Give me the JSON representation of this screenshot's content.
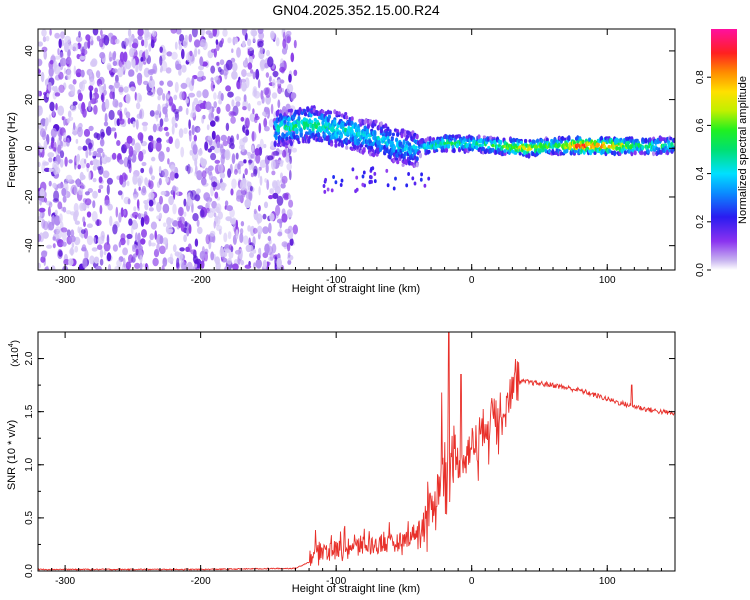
{
  "title": "GN04.2025.352.15.00.R24",
  "colors": {
    "snr_line": "#e8302a",
    "frame": "#000000",
    "scatter_base": "#a078f0"
  },
  "chart_data": [
    {
      "type": "heatmap",
      "name": "spectrogram",
      "xlabel": "Height of straight line (km)",
      "ylabel": "Frequency (Hz)",
      "xlim": [
        -320,
        150
      ],
      "ylim": [
        -50,
        49
      ],
      "x_ticks": [
        -300,
        -200,
        -100,
        0,
        100
      ],
      "x_tick_labels": [
        "-300",
        "-200",
        "-100",
        "0",
        "100"
      ],
      "y_ticks": [
        -40,
        -20,
        0,
        20,
        40
      ],
      "y_tick_labels": [
        "-40",
        "-20",
        "0",
        "20",
        "40"
      ],
      "noise_region_x": [
        -320,
        -135
      ],
      "ridge": {
        "x": [
          -145,
          -130,
          -120,
          -110,
          -100,
          -90,
          -80,
          -70,
          -60,
          -50,
          -40,
          -30,
          -20,
          -10,
          0,
          20,
          40,
          60,
          80,
          100,
          120,
          150
        ],
        "freq": [
          8,
          9,
          10,
          9,
          8,
          7,
          5,
          4,
          2,
          0,
          0,
          1,
          2,
          2,
          2,
          1,
          0,
          1,
          1,
          1,
          1,
          1
        ],
        "amp": [
          0.45,
          0.5,
          0.5,
          0.48,
          0.45,
          0.45,
          0.42,
          0.4,
          0.4,
          0.38,
          0.4,
          0.45,
          0.55,
          0.55,
          0.5,
          0.55,
          0.75,
          0.55,
          0.9,
          0.85,
          0.55,
          0.5
        ]
      },
      "colorbar": {
        "label": "Normalized spectral amplitude",
        "range": [
          0.0,
          1.0
        ],
        "ticks": [
          0.0,
          0.2,
          0.4,
          0.6,
          0.8
        ],
        "tick_labels": [
          "0.0",
          "0.2",
          "0.4",
          "0.6",
          "0.8"
        ]
      }
    },
    {
      "type": "line",
      "name": "snr",
      "xlabel": "Height of straight line (km)",
      "ylabel": "SNR (10 * v/v)",
      "y_scale_label": "(x10",
      "y_scale_exp": "4",
      "xlim": [
        -320,
        150
      ],
      "ylim": [
        0.0,
        2.25
      ],
      "x_ticks": [
        -300,
        -200,
        -100,
        0,
        100
      ],
      "x_tick_labels": [
        "-300",
        "-200",
        "-100",
        "0",
        "100"
      ],
      "y_ticks": [
        0.0,
        0.5,
        1.0,
        1.5,
        2.0
      ],
      "y_tick_labels": [
        "0.0",
        "0.5",
        "1.0",
        "1.5",
        "2.0"
      ],
      "series": [
        {
          "name": "SNR",
          "x": [
            -320,
            -200,
            -130,
            -120,
            -115,
            -100,
            -80,
            -60,
            -50,
            -40,
            -30,
            -25,
            -20,
            -15,
            -10,
            0,
            10,
            20,
            30,
            35,
            40,
            60,
            80,
            100,
            110,
            120,
            130,
            140,
            150
          ],
          "values": [
            0.01,
            0.01,
            0.02,
            0.08,
            0.15,
            0.17,
            0.2,
            0.22,
            0.25,
            0.35,
            0.6,
            0.8,
            1.0,
            1.0,
            1.05,
            1.2,
            1.4,
            1.55,
            1.72,
            1.78,
            1.78,
            1.75,
            1.7,
            1.62,
            1.58,
            1.55,
            1.52,
            1.5,
            1.48
          ]
        }
      ],
      "spikes": [
        {
          "x": -17,
          "value": 2.25
        },
        {
          "x": -22,
          "value": 1.68
        },
        {
          "x": -8,
          "value": 1.85
        },
        {
          "x": 118,
          "value": 1.75
        }
      ]
    }
  ]
}
